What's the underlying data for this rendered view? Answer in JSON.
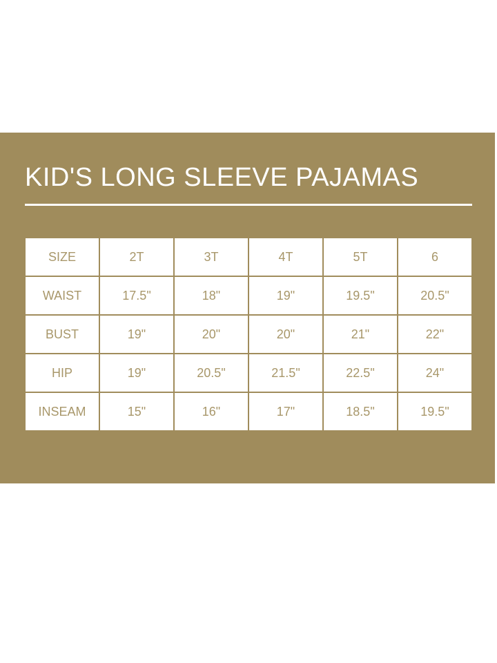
{
  "title": "KID'S LONG SLEEVE PAJAMAS",
  "colors": {
    "panel": "#a08c5c",
    "cell_text": "#a8976a",
    "cell_bg": "#ffffff"
  },
  "table": {
    "rows": [
      {
        "label": "SIZE",
        "values": [
          "2T",
          "3T",
          "4T",
          "5T",
          "6"
        ]
      },
      {
        "label": "WAIST",
        "values": [
          "17.5\"",
          "18\"",
          "19\"",
          "19.5\"",
          "20.5\""
        ]
      },
      {
        "label": "BUST",
        "values": [
          "19\"",
          "20\"",
          "20\"",
          "21\"",
          "22\""
        ]
      },
      {
        "label": "HIP",
        "values": [
          "19\"",
          "20.5\"",
          "21.5\"",
          "22.5\"",
          "24\""
        ]
      },
      {
        "label": "INSEAM",
        "values": [
          "15\"",
          "16\"",
          "17\"",
          "18.5\"",
          "19.5\""
        ]
      }
    ]
  }
}
